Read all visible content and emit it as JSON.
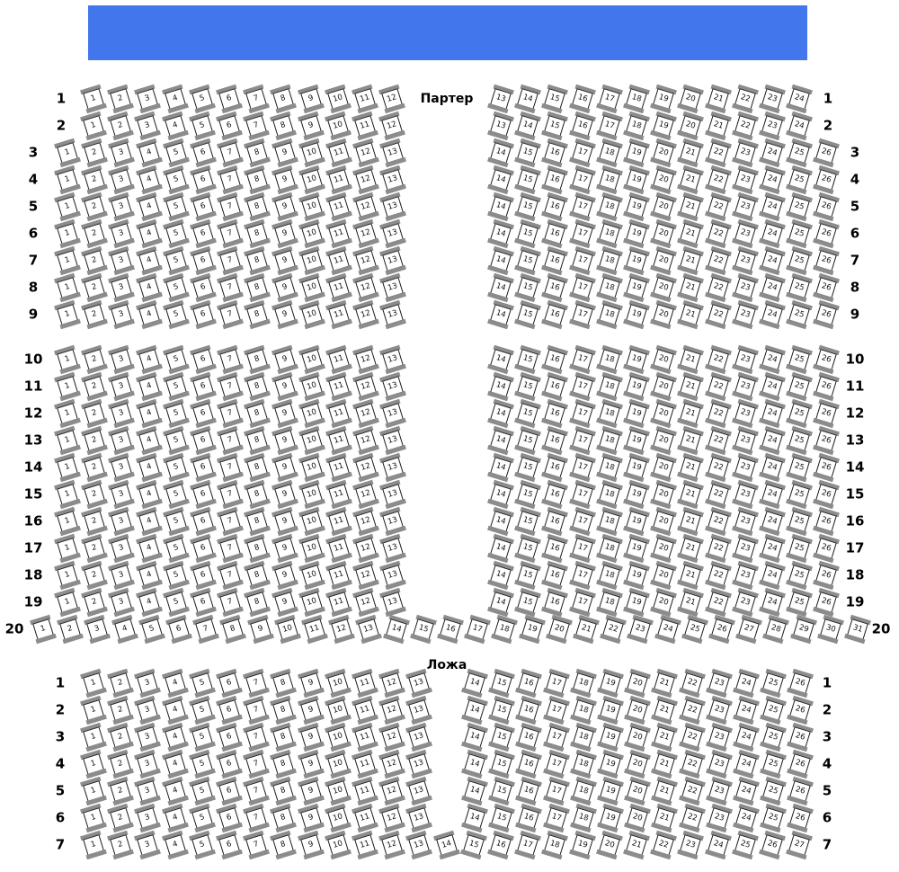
{
  "section_labels": {
    "parterre": "Партер",
    "loge": "Ложа"
  },
  "colors": {
    "stage": "#4276ED",
    "seat_bar": "#8C8C8C",
    "seat_border": "#1E1E1E",
    "seat_fill": "#FFFFFF",
    "label_text": "#000000"
  },
  "rows": [
    {
      "band": "p1",
      "pattern": "A",
      "label": "1",
      "left": [
        1,
        12
      ],
      "right": [
        13,
        24
      ]
    },
    {
      "band": "p1",
      "pattern": "A",
      "label": "2",
      "left": [
        1,
        12
      ],
      "right": [
        13,
        24
      ]
    },
    {
      "band": "p1",
      "pattern": "B",
      "label": "3",
      "left": [
        1,
        13
      ],
      "right": [
        14,
        26
      ]
    },
    {
      "band": "p1",
      "pattern": "B",
      "label": "4",
      "left": [
        1,
        13
      ],
      "right": [
        14,
        26
      ]
    },
    {
      "band": "p1",
      "pattern": "B",
      "label": "5",
      "left": [
        1,
        13
      ],
      "right": [
        14,
        26
      ]
    },
    {
      "band": "p1",
      "pattern": "B",
      "label": "6",
      "left": [
        1,
        13
      ],
      "right": [
        14,
        26
      ]
    },
    {
      "band": "p1",
      "pattern": "B",
      "label": "7",
      "left": [
        1,
        13
      ],
      "right": [
        14,
        26
      ]
    },
    {
      "band": "p1",
      "pattern": "B",
      "label": "8",
      "left": [
        1,
        13
      ],
      "right": [
        14,
        26
      ]
    },
    {
      "band": "p1",
      "pattern": "B",
      "label": "9",
      "left": [
        1,
        13
      ],
      "right": [
        14,
        26
      ]
    },
    {
      "band": "p2",
      "pattern": "B",
      "label": "10",
      "left": [
        1,
        13
      ],
      "right": [
        14,
        26
      ]
    },
    {
      "band": "p2",
      "pattern": "B",
      "label": "11",
      "left": [
        1,
        13
      ],
      "right": [
        14,
        26
      ]
    },
    {
      "band": "p2",
      "pattern": "B",
      "label": "12",
      "left": [
        1,
        13
      ],
      "right": [
        14,
        26
      ]
    },
    {
      "band": "p2",
      "pattern": "B",
      "label": "13",
      "left": [
        1,
        13
      ],
      "right": [
        14,
        26
      ]
    },
    {
      "band": "p2",
      "pattern": "B",
      "label": "14",
      "left": [
        1,
        13
      ],
      "right": [
        14,
        26
      ]
    },
    {
      "band": "p2",
      "pattern": "B",
      "label": "15",
      "left": [
        1,
        13
      ],
      "right": [
        14,
        26
      ]
    },
    {
      "band": "p2",
      "pattern": "B",
      "label": "16",
      "left": [
        1,
        13
      ],
      "right": [
        14,
        26
      ]
    },
    {
      "band": "p2",
      "pattern": "B",
      "label": "17",
      "left": [
        1,
        13
      ],
      "right": [
        14,
        26
      ]
    },
    {
      "band": "p2",
      "pattern": "B",
      "label": "18",
      "left": [
        1,
        13
      ],
      "right": [
        14,
        26
      ]
    },
    {
      "band": "p2",
      "pattern": "B",
      "label": "19",
      "left": [
        1,
        13
      ],
      "right": [
        14,
        26
      ]
    },
    {
      "band": "p3",
      "pattern": "C",
      "label": "20",
      "full": [
        1,
        31
      ],
      "split": 13
    },
    {
      "band": "loge",
      "pattern": "D",
      "label": "1",
      "left": [
        1,
        13
      ],
      "right": [
        14,
        26
      ]
    },
    {
      "band": "loge",
      "pattern": "D",
      "label": "2",
      "left": [
        1,
        13
      ],
      "right": [
        14,
        26
      ]
    },
    {
      "band": "loge",
      "pattern": "D",
      "label": "3",
      "left": [
        1,
        13
      ],
      "right": [
        14,
        26
      ]
    },
    {
      "band": "loge",
      "pattern": "D",
      "label": "4",
      "left": [
        1,
        13
      ],
      "right": [
        14,
        26
      ]
    },
    {
      "band": "loge",
      "pattern": "D",
      "label": "5",
      "left": [
        1,
        13
      ],
      "right": [
        14,
        26
      ]
    },
    {
      "band": "loge",
      "pattern": "D",
      "label": "6",
      "left": [
        1,
        13
      ],
      "right": [
        14,
        26
      ]
    },
    {
      "band": "loge",
      "pattern": "E",
      "label": "7",
      "full": [
        1,
        27
      ],
      "split": 14
    }
  ]
}
